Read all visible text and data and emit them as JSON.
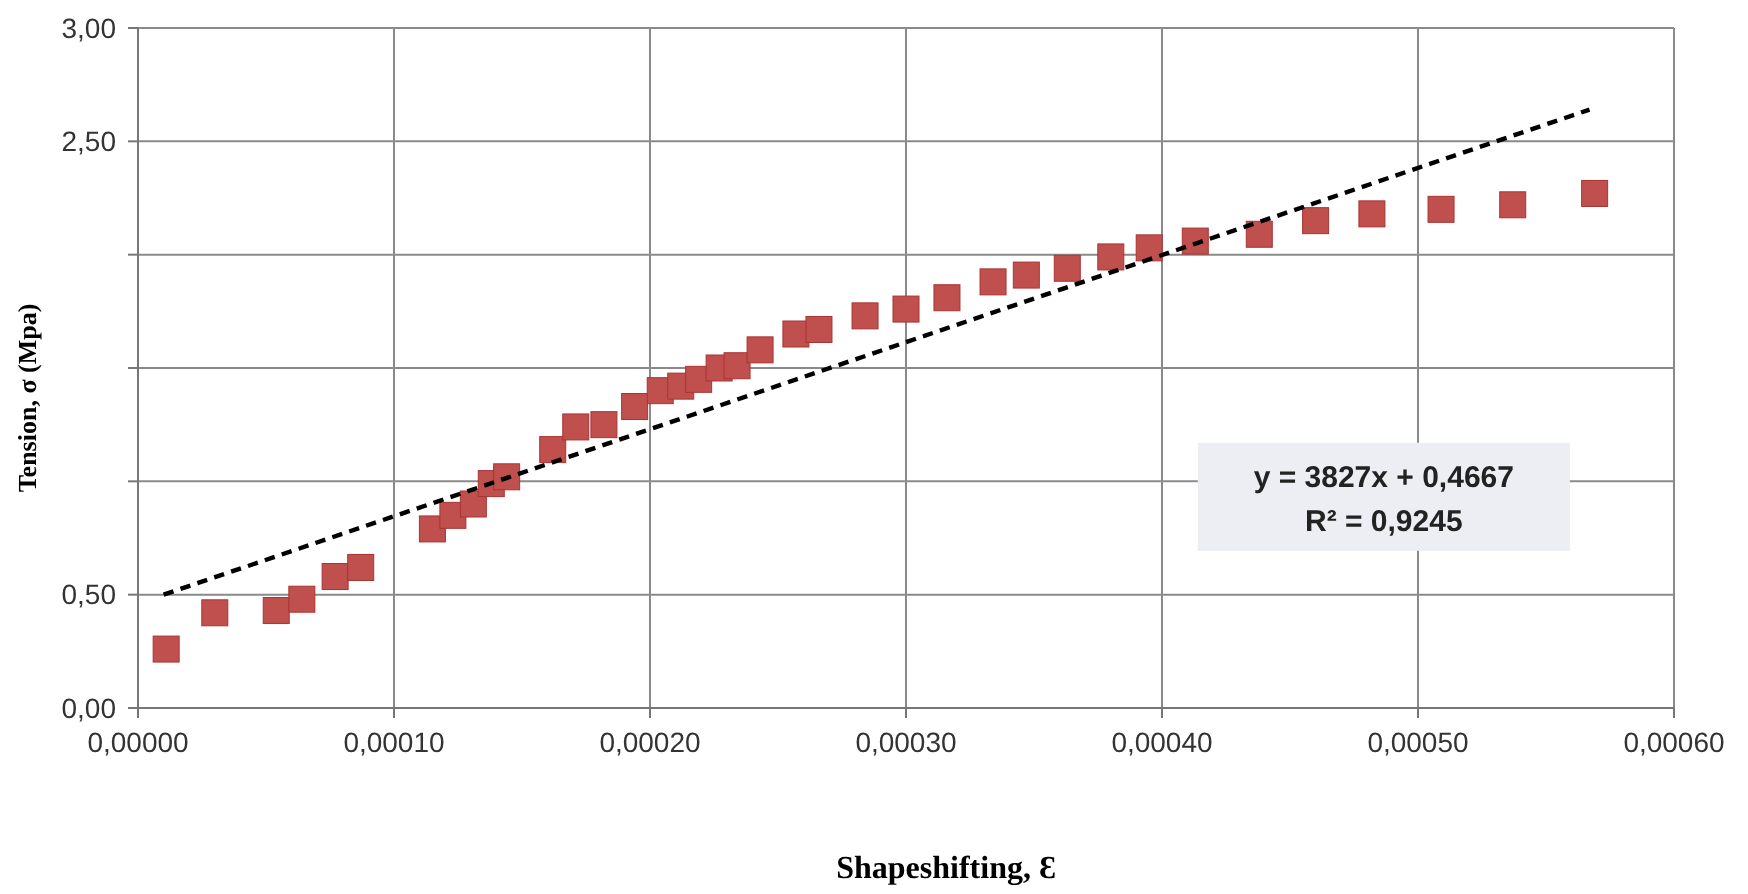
{
  "chart_data": {
    "type": "scatter",
    "xlabel": "Shapeshifting, Ɛ",
    "ylabel": "Tension, σ (Mpa)",
    "xlim": [
      0,
      0.0006
    ],
    "ylim": [
      0,
      3
    ],
    "xticks": [
      {
        "value": 0,
        "label": "0,00000"
      },
      {
        "value": 0.0001,
        "label": "0,00010"
      },
      {
        "value": 0.0002,
        "label": "0,00020"
      },
      {
        "value": 0.0003,
        "label": "0,00030"
      },
      {
        "value": 0.0004,
        "label": "0,00040"
      },
      {
        "value": 0.0005,
        "label": "0,00050"
      },
      {
        "value": 0.0006,
        "label": "0,00060"
      }
    ],
    "yticks": [
      {
        "value": 0,
        "label": "0,00"
      },
      {
        "value": 0.5,
        "label": "0,50"
      },
      {
        "value": 1,
        "label": null
      },
      {
        "value": 1.5,
        "label": null
      },
      {
        "value": 2,
        "label": null
      },
      {
        "value": 2.5,
        "label": "2,50"
      },
      {
        "value": 3,
        "label": "3,00"
      }
    ],
    "grid": true,
    "annotations": [
      "y = 3827x + 0,4667",
      "R² = 0,9245"
    ],
    "series": [
      {
        "marker": "square",
        "color": "#c0504d",
        "x": [
          1.1e-05,
          3e-05,
          5.4e-05,
          6.4e-05,
          7.7e-05,
          8.7e-05,
          0.000115,
          0.000123,
          0.000131,
          0.000138,
          0.000144,
          0.000162,
          0.000171,
          0.000182,
          0.000194,
          0.000204,
          0.000212,
          0.000219,
          0.000227,
          0.000234,
          0.000243,
          0.000257,
          0.000266,
          0.000284,
          0.0003,
          0.000316,
          0.000334,
          0.000347,
          0.000363,
          0.00038,
          0.000395,
          0.000413,
          0.000438,
          0.00046,
          0.000482,
          0.000509,
          0.000537,
          0.000569
        ],
        "values": [
          0.26,
          0.42,
          0.43,
          0.48,
          0.58,
          0.62,
          0.79,
          0.85,
          0.9,
          0.99,
          1.02,
          1.14,
          1.24,
          1.25,
          1.33,
          1.4,
          1.42,
          1.45,
          1.5,
          1.51,
          1.58,
          1.65,
          1.67,
          1.73,
          1.76,
          1.81,
          1.88,
          1.91,
          1.94,
          1.99,
          2.03,
          2.06,
          2.09,
          2.15,
          2.18,
          2.2,
          2.22,
          2.27
        ]
      },
      {
        "type": "line",
        "marker": "none",
        "line_style": "dashed",
        "color": "#000000",
        "x": [
          1e-05,
          0.000567
        ],
        "values": [
          0.5,
          2.64
        ]
      }
    ]
  }
}
